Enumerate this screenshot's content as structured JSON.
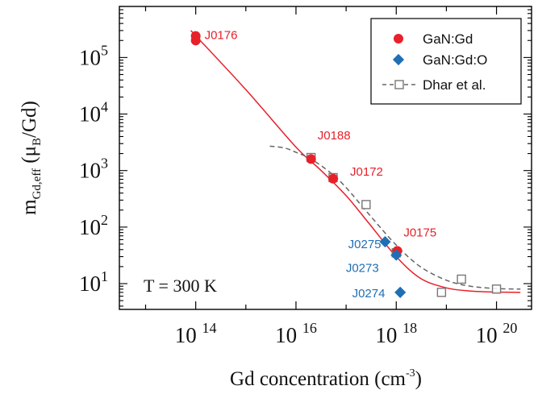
{
  "chart_data": {
    "type": "scatter",
    "xscale": "log",
    "yscale": "log",
    "xlim": [
      3000000000000.0,
      5e+20
    ],
    "ylim": [
      3.5,
      800000
    ],
    "xlabel_main": "Gd concentration (cm",
    "xlabel_sup": "-3",
    "xlabel_end": ")",
    "ylabel": {
      "m": "m",
      "sub": "Gd,eff",
      "paren_open": " (",
      "mu": "μ",
      "mu_sub": "B",
      "rest": "/Gd)"
    },
    "x_ticks": [
      {
        "value": 100000000000000.0,
        "base": "10",
        "exp": "14"
      },
      {
        "value": 1e+16,
        "base": "10",
        "exp": "16"
      },
      {
        "value": 1e+18,
        "base": "10",
        "exp": "18"
      },
      {
        "value": 1e+20,
        "base": "10",
        "exp": "20"
      }
    ],
    "y_ticks": [
      {
        "value": 10,
        "base": "10",
        "exp": "1"
      },
      {
        "value": 100,
        "base": "10",
        "exp": "2"
      },
      {
        "value": 1000,
        "base": "10",
        "exp": "3"
      },
      {
        "value": 10000,
        "base": "10",
        "exp": "4"
      },
      {
        "value": 100000,
        "base": "10",
        "exp": "5"
      }
    ],
    "temperature_label": "T = 300 K",
    "legend_position": "top-right",
    "series": [
      {
        "name": "GaN:Gd",
        "marker": "circle",
        "color": "#e8202a",
        "points": [
          {
            "x": 100000000000000.0,
            "y": 240000
          },
          {
            "x": 100000000000000.0,
            "y": 200000
          },
          {
            "x": 2e+16,
            "y": 1600
          },
          {
            "x": 5.5e+16,
            "y": 720
          },
          {
            "x": 1.05e+18,
            "y": 38
          }
        ]
      },
      {
        "name": "GaN:Gd:O",
        "marker": "diamond",
        "color": "#1f6fb4",
        "points": [
          {
            "x": 6e+17,
            "y": 55
          },
          {
            "x": 1e+18,
            "y": 32
          },
          {
            "x": 1.2e+18,
            "y": 7
          }
        ]
      },
      {
        "name": "Dhar et al.",
        "marker": "open-square",
        "color": "#777777",
        "points": [
          {
            "x": 2e+16,
            "y": 1700
          },
          {
            "x": 5.5e+16,
            "y": 750
          },
          {
            "x": 2.5e+17,
            "y": 250
          },
          {
            "x": 1e+18,
            "y": 35
          },
          {
            "x": 8e+18,
            "y": 7
          },
          {
            "x": 2e+19,
            "y": 12
          },
          {
            "x": 1e+20,
            "y": 8
          }
        ]
      }
    ],
    "fit_curves": [
      {
        "style": "solid",
        "color": "#e8202a",
        "points": [
          [
            80000000000000.0,
            300000
          ],
          [
            1000000000000000.0,
            27000
          ],
          [
            1e+16,
            2600
          ],
          [
            3e+16,
            1050
          ],
          [
            1e+17,
            360
          ],
          [
            3e+17,
            110
          ],
          [
            1e+18,
            30
          ],
          [
            3e+18,
            12.5
          ],
          [
            1e+19,
            8.4
          ],
          [
            3e+19,
            7.4
          ],
          [
            1e+20,
            7.1
          ],
          [
            3e+20,
            7
          ]
        ]
      },
      {
        "style": "dashed",
        "color": "#666666",
        "points": [
          [
            3000000000000000.0,
            2700
          ],
          [
            6000000000000000.0,
            2500
          ],
          [
            1e+16,
            2100
          ],
          [
            2e+16,
            1600
          ],
          [
            5e+16,
            900
          ],
          [
            1e+17,
            500
          ],
          [
            3e+17,
            160
          ],
          [
            1e+18,
            48
          ],
          [
            3e+18,
            20
          ],
          [
            1e+19,
            11.5
          ],
          [
            3e+19,
            9
          ],
          [
            1e+20,
            8.2
          ],
          [
            3e+20,
            8
          ]
        ]
      }
    ],
    "annotations": [
      {
        "text": "J0176",
        "color": "#e8202a",
        "x": 150000000000000.0,
        "y": 250000,
        "anchor": "start"
      },
      {
        "text": "J0188",
        "color": "#e8202a",
        "x": 2.7e+16,
        "y": 4200,
        "anchor": "start"
      },
      {
        "text": "J0172",
        "color": "#e8202a",
        "x": 1.2e+17,
        "y": 950,
        "anchor": "start"
      },
      {
        "text": "J0175",
        "color": "#e8202a",
        "x": 1.4e+18,
        "y": 80,
        "anchor": "start"
      },
      {
        "text": "J0275",
        "color": "#1f6fb4",
        "x": 5e+17,
        "y": 50,
        "anchor": "end"
      },
      {
        "text": "J0273",
        "color": "#1f6fb4",
        "x": 4.5e+17,
        "y": 19,
        "anchor": "end"
      },
      {
        "text": "J0274",
        "color": "#1f6fb4",
        "x": 6e+17,
        "y": 6.7,
        "anchor": "end"
      }
    ]
  }
}
